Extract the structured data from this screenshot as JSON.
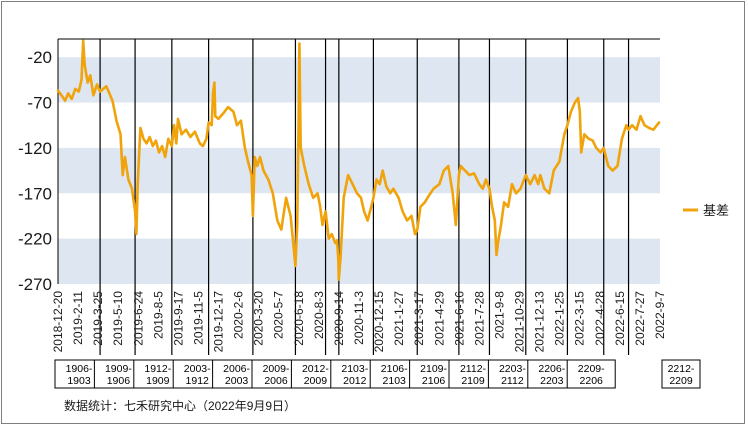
{
  "chart_data": {
    "type": "line",
    "source_note": "数据统计：七禾研究中心（2022年9月9日）",
    "ylim": [
      -270,
      0
    ],
    "y_ticks": [
      -20,
      -70,
      -120,
      -170,
      -220,
      -270
    ],
    "band_ranges": [
      [
        -70,
        -20
      ],
      [
        -170,
        -120
      ],
      [
        -270,
        -220
      ]
    ],
    "grid": false,
    "legend_position": "right",
    "x_start": "2018-12-20",
    "x_end": "2022-9-9",
    "x_ticks": [
      "2018-12-20",
      "2019-2-11",
      "2019-3-25",
      "2019-5-10",
      "2019-6-24",
      "2019-8-5",
      "2019-9-17",
      "2019-11-5",
      "2019-12-17",
      "2020-2-6",
      "2020-3-20",
      "2020-5-7",
      "2020-6-18",
      "2020-8-3",
      "2020-9-14",
      "2020-11-3",
      "2020-12-15",
      "2021-1-27",
      "2021-3-17",
      "2021-4-29",
      "2021-6-16",
      "2021-7-28",
      "2021-9-8",
      "2021-10-29",
      "2021-12-13",
      "2022-1-25",
      "2022-3-15",
      "2022-4-28",
      "2022-6-15",
      "2022-7-27",
      "2022-9-7"
    ],
    "contract_dividers": [
      "2019-3-25",
      "2019-6-12",
      "2019-9-3",
      "2019-11-25",
      "2020-3-4",
      "2020-6-8",
      "2020-8-15",
      "2020-9-14",
      "2020-12-1",
      "2021-3-10",
      "2021-6-12",
      "2021-8-20",
      "2021-11-10",
      "2022-2-12",
      "2022-5-5",
      "2022-6-30"
    ],
    "contract_boxes": [
      "1906-1903",
      "1909-1906",
      "1912-1909",
      "2003-1912",
      "2006-2003",
      "2009-2006",
      "2012-2009",
      "2103-2012",
      "2106-2103",
      "2109-2106",
      "2112-2109",
      "2203-2112",
      "2206-2203",
      "2209-2206",
      "2212-2209"
    ],
    "series": [
      {
        "name": "基差",
        "color": "#f0a30a",
        "points": [
          [
            "2018-12-20",
            -57
          ],
          [
            "2018-12-28",
            -62
          ],
          [
            "2019-1-5",
            -68
          ],
          [
            "2019-1-12",
            -60
          ],
          [
            "2019-1-20",
            -66
          ],
          [
            "2019-1-28",
            -55
          ],
          [
            "2019-2-5",
            -58
          ],
          [
            "2019-2-11",
            -45
          ],
          [
            "2019-2-15",
            -2
          ],
          [
            "2019-2-18",
            -28
          ],
          [
            "2019-2-25",
            -48
          ],
          [
            "2019-3-3",
            -40
          ],
          [
            "2019-3-10",
            -62
          ],
          [
            "2019-3-18",
            -50
          ],
          [
            "2019-3-25",
            -58
          ],
          [
            "2019-4-1",
            -55
          ],
          [
            "2019-4-8",
            -52
          ],
          [
            "2019-4-15",
            -60
          ],
          [
            "2019-4-22",
            -68
          ],
          [
            "2019-5-1",
            -90
          ],
          [
            "2019-5-10",
            -105
          ],
          [
            "2019-5-15",
            -150
          ],
          [
            "2019-5-20",
            -130
          ],
          [
            "2019-5-28",
            -155
          ],
          [
            "2019-6-5",
            -165
          ],
          [
            "2019-6-12",
            -190
          ],
          [
            "2019-6-15",
            -215
          ],
          [
            "2019-6-18",
            -160
          ],
          [
            "2019-6-24",
            -98
          ],
          [
            "2019-7-1",
            -110
          ],
          [
            "2019-7-8",
            -115
          ],
          [
            "2019-7-15",
            -108
          ],
          [
            "2019-7-22",
            -118
          ],
          [
            "2019-7-29",
            -112
          ],
          [
            "2019-8-5",
            -125
          ],
          [
            "2019-8-12",
            -118
          ],
          [
            "2019-8-19",
            -130
          ],
          [
            "2019-8-26",
            -110
          ],
          [
            "2019-9-3",
            -118
          ],
          [
            "2019-9-8",
            -95
          ],
          [
            "2019-9-13",
            -115
          ],
          [
            "2019-9-17",
            -88
          ],
          [
            "2019-9-25",
            -105
          ],
          [
            "2019-10-5",
            -100
          ],
          [
            "2019-10-15",
            -108
          ],
          [
            "2019-10-25",
            -102
          ],
          [
            "2019-11-5",
            -115
          ],
          [
            "2019-11-12",
            -118
          ],
          [
            "2019-11-20",
            -110
          ],
          [
            "2019-11-25",
            -92
          ],
          [
            "2019-12-2",
            -95
          ],
          [
            "2019-12-5",
            -60
          ],
          [
            "2019-12-8",
            -48
          ],
          [
            "2019-12-10",
            -85
          ],
          [
            "2019-12-17",
            -88
          ],
          [
            "2019-12-28",
            -82
          ],
          [
            "2020-1-8",
            -75
          ],
          [
            "2020-1-20",
            -80
          ],
          [
            "2020-1-28",
            -95
          ],
          [
            "2020-2-6",
            -90
          ],
          [
            "2020-2-15",
            -120
          ],
          [
            "2020-2-22",
            -135
          ],
          [
            "2020-3-1",
            -150
          ],
          [
            "2020-3-4",
            -195
          ],
          [
            "2020-3-8",
            -130
          ],
          [
            "2020-3-14",
            -140
          ],
          [
            "2020-3-20",
            -130
          ],
          [
            "2020-3-28",
            -145
          ],
          [
            "2020-4-8",
            -155
          ],
          [
            "2020-4-18",
            -170
          ],
          [
            "2020-4-28",
            -200
          ],
          [
            "2020-5-7",
            -210
          ],
          [
            "2020-5-18",
            -175
          ],
          [
            "2020-5-28",
            -195
          ],
          [
            "2020-6-4",
            -230
          ],
          [
            "2020-6-8",
            -250
          ],
          [
            "2020-6-12",
            -205
          ],
          [
            "2020-6-15",
            -100
          ],
          [
            "2020-6-17",
            -5
          ],
          [
            "2020-6-20",
            -120
          ],
          [
            "2020-6-28",
            -140
          ],
          [
            "2020-7-8",
            -160
          ],
          [
            "2020-7-18",
            -175
          ],
          [
            "2020-7-28",
            -170
          ],
          [
            "2020-8-3",
            -185
          ],
          [
            "2020-8-8",
            -205
          ],
          [
            "2020-8-15",
            -190
          ],
          [
            "2020-8-22",
            -220
          ],
          [
            "2020-8-29",
            -215
          ],
          [
            "2020-9-6",
            -225
          ],
          [
            "2020-9-10",
            -222
          ],
          [
            "2020-9-13",
            -245
          ],
          [
            "2020-9-14",
            -265
          ],
          [
            "2020-9-18",
            -240
          ],
          [
            "2020-9-25",
            -175
          ],
          [
            "2020-10-5",
            -150
          ],
          [
            "2020-10-15",
            -160
          ],
          [
            "2020-10-25",
            -170
          ],
          [
            "2020-11-3",
            -175
          ],
          [
            "2020-11-10",
            -190
          ],
          [
            "2020-11-18",
            -200
          ],
          [
            "2020-11-26",
            -185
          ],
          [
            "2020-12-1",
            -175
          ],
          [
            "2020-12-8",
            -155
          ],
          [
            "2020-12-15",
            -160
          ],
          [
            "2020-12-22",
            -145
          ],
          [
            "2020-12-30",
            -162
          ],
          [
            "2021-1-8",
            -170
          ],
          [
            "2021-1-15",
            -165
          ],
          [
            "2021-1-27",
            -175
          ],
          [
            "2021-2-5",
            -190
          ],
          [
            "2021-2-15",
            -200
          ],
          [
            "2021-2-25",
            -195
          ],
          [
            "2021-3-5",
            -215
          ],
          [
            "2021-3-10",
            -210
          ],
          [
            "2021-3-17",
            -185
          ],
          [
            "2021-3-27",
            -180
          ],
          [
            "2021-4-6",
            -172
          ],
          [
            "2021-4-16",
            -165
          ],
          [
            "2021-4-29",
            -160
          ],
          [
            "2021-5-9",
            -145
          ],
          [
            "2021-5-19",
            -140
          ],
          [
            "2021-5-29",
            -170
          ],
          [
            "2021-6-5",
            -205
          ],
          [
            "2021-6-12",
            -150
          ],
          [
            "2021-6-16",
            -140
          ],
          [
            "2021-6-26",
            -145
          ],
          [
            "2021-7-6",
            -150
          ],
          [
            "2021-7-16",
            -148
          ],
          [
            "2021-7-28",
            -160
          ],
          [
            "2021-8-5",
            -165
          ],
          [
            "2021-8-12",
            -155
          ],
          [
            "2021-8-20",
            -165
          ],
          [
            "2021-8-26",
            -185
          ],
          [
            "2021-9-1",
            -200
          ],
          [
            "2021-9-5",
            -238
          ],
          [
            "2021-9-8",
            -225
          ],
          [
            "2021-9-15",
            -205
          ],
          [
            "2021-9-22",
            -180
          ],
          [
            "2021-10-1",
            -185
          ],
          [
            "2021-10-10",
            -160
          ],
          [
            "2021-10-19",
            -170
          ],
          [
            "2021-10-29",
            -165
          ],
          [
            "2021-11-10",
            -150
          ],
          [
            "2021-11-20",
            -160
          ],
          [
            "2021-11-30",
            -150
          ],
          [
            "2021-12-8",
            -160
          ],
          [
            "2021-12-13",
            -150
          ],
          [
            "2021-12-22",
            -165
          ],
          [
            "2022-1-2",
            -170
          ],
          [
            "2022-1-12",
            -145
          ],
          [
            "2022-1-25",
            -135
          ],
          [
            "2022-2-5",
            -105
          ],
          [
            "2022-2-12",
            -95
          ],
          [
            "2022-2-20",
            -80
          ],
          [
            "2022-3-1",
            -70
          ],
          [
            "2022-3-8",
            -65
          ],
          [
            "2022-3-12",
            -80
          ],
          [
            "2022-3-15",
            -125
          ],
          [
            "2022-3-22",
            -105
          ],
          [
            "2022-4-1",
            -110
          ],
          [
            "2022-4-10",
            -112
          ],
          [
            "2022-4-18",
            -120
          ],
          [
            "2022-4-28",
            -125
          ],
          [
            "2022-5-5",
            -120
          ],
          [
            "2022-5-15",
            -140
          ],
          [
            "2022-5-25",
            -145
          ],
          [
            "2022-6-5",
            -140
          ],
          [
            "2022-6-15",
            -110
          ],
          [
            "2022-6-25",
            -95
          ],
          [
            "2022-6-30",
            -100
          ],
          [
            "2022-7-8",
            -95
          ],
          [
            "2022-7-18",
            -100
          ],
          [
            "2022-7-27",
            -85
          ],
          [
            "2022-8-5",
            -95
          ],
          [
            "2022-8-15",
            -98
          ],
          [
            "2022-8-25",
            -100
          ],
          [
            "2022-9-2",
            -95
          ],
          [
            "2022-9-7",
            -92
          ]
        ]
      }
    ]
  }
}
